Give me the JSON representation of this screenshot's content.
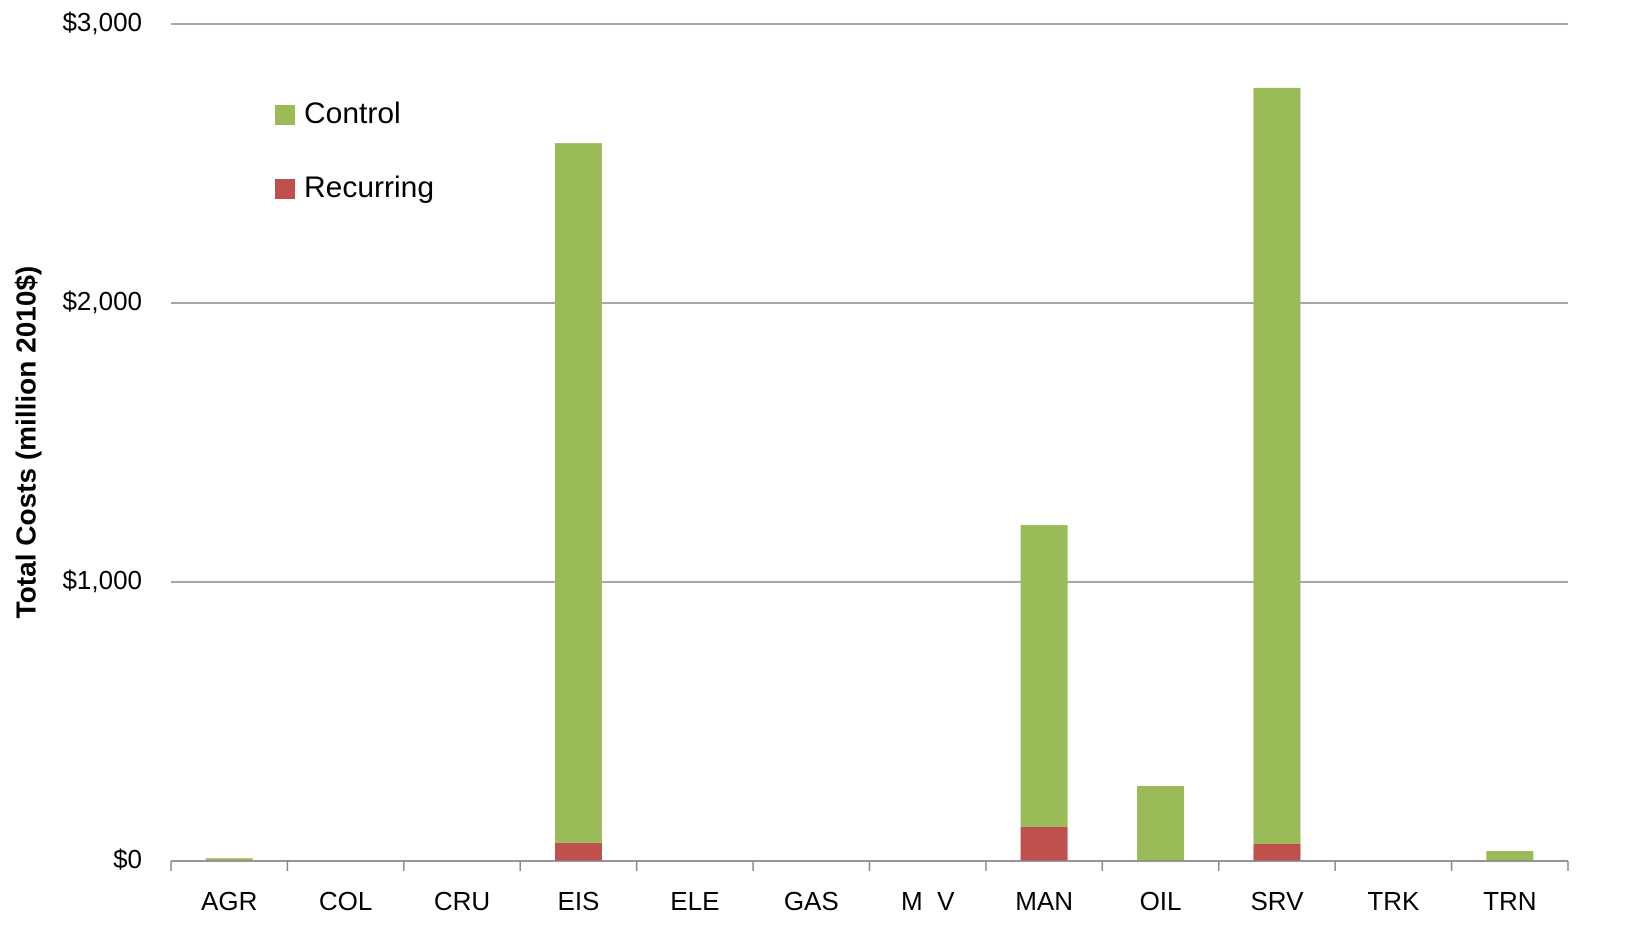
{
  "chart_data": {
    "type": "stacked_bar",
    "y_label": "Total Costs (million 2010$)",
    "categories": [
      "AGR",
      "COL",
      "CRU",
      "EIS",
      "ELE",
      "GAS",
      "M  V",
      "MAN",
      "OIL",
      "SRV",
      "TRK",
      "TRN"
    ],
    "series": [
      {
        "name": "Recurring",
        "color": "#c0504d",
        "values": [
          0,
          0,
          0,
          65,
          0,
          0,
          0,
          122,
          0,
          61,
          0,
          0
        ]
      },
      {
        "name": "Control",
        "color": "#9bbb59",
        "values": [
          10,
          0,
          0,
          2508,
          0,
          0,
          0,
          1082,
          269,
          2710,
          0,
          36
        ]
      }
    ],
    "ylim": [
      0,
      3000
    ],
    "yticks": [
      {
        "value": 0,
        "label": "$0"
      },
      {
        "value": 1000,
        "label": "$1,000"
      },
      {
        "value": 2000,
        "label": "$2,000"
      },
      {
        "value": 3000,
        "label": "$3,000"
      }
    ],
    "grid": true,
    "legend": "top-left"
  }
}
